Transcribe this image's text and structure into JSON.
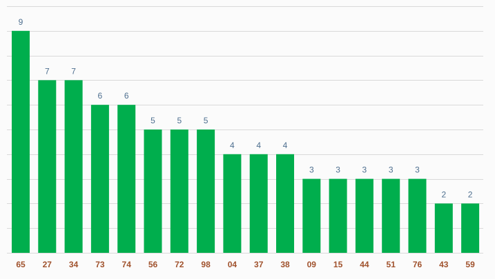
{
  "chart_data": {
    "type": "bar",
    "categories": [
      "65",
      "27",
      "34",
      "73",
      "74",
      "56",
      "72",
      "98",
      "04",
      "37",
      "38",
      "09",
      "15",
      "44",
      "51",
      "76",
      "43",
      "59"
    ],
    "values": [
      9,
      7,
      7,
      6,
      6,
      5,
      5,
      5,
      4,
      4,
      4,
      3,
      3,
      3,
      3,
      3,
      2,
      2
    ],
    "ylim": [
      0,
      10
    ],
    "grid": true,
    "data_labels": true,
    "colors": {
      "bar": "#00ae4d",
      "grid": "#d9d9d9",
      "value_label": "#4e6f8f",
      "tick_label": "#a0522d",
      "background": "#fbfbfb"
    }
  }
}
